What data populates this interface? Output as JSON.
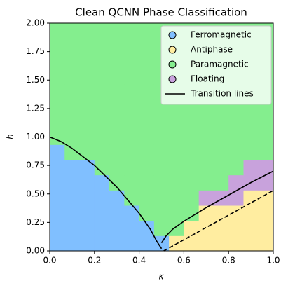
{
  "chart_data": {
    "type": "phase-map",
    "title": "Clean QCNN Phase Classification",
    "x_label": "κ",
    "y_label": "h",
    "xlim": [
      0,
      1
    ],
    "ylim": [
      0,
      2
    ],
    "xticks": [
      {
        "value": 0,
        "label": "0.0"
      },
      {
        "value": 0.2,
        "label": "0.2"
      },
      {
        "value": 0.4,
        "label": "0.4"
      },
      {
        "value": 0.6,
        "label": "0.6"
      },
      {
        "value": 0.8,
        "label": "0.8"
      },
      {
        "value": 1,
        "label": "1.0"
      }
    ],
    "yticks": [
      {
        "value": 0,
        "label": "0.00"
      },
      {
        "value": 0.25,
        "label": "0.25"
      },
      {
        "value": 0.5,
        "label": "0.50"
      },
      {
        "value": 0.75,
        "label": "0.75"
      },
      {
        "value": 1,
        "label": "1.00"
      },
      {
        "value": 1.25,
        "label": "1.25"
      },
      {
        "value": 1.5,
        "label": "1.50"
      },
      {
        "value": 1.75,
        "label": "1.75"
      },
      {
        "value": 2,
        "label": "2.00"
      }
    ],
    "phases": [
      {
        "name": "Ferromagnetic",
        "color": "#80bfff"
      },
      {
        "name": "Antiphase",
        "color": "#ffeda0"
      },
      {
        "name": "Paramagnetic",
        "color": "#84ee8e"
      },
      {
        "name": "Floating",
        "color": "#c8a2dc"
      }
    ],
    "z": [
      [
        0,
        0,
        0,
        0,
        0,
        0,
        0,
        0,
        1,
        1,
        1,
        1,
        1,
        1,
        1
      ],
      [
        0,
        0,
        0,
        0,
        0,
        0,
        0,
        2,
        2,
        1,
        1,
        1,
        1,
        1,
        1
      ],
      [
        0,
        0,
        0,
        0,
        0,
        0,
        2,
        2,
        2,
        2,
        1,
        1,
        1,
        1,
        1
      ],
      [
        0,
        0,
        0,
        0,
        0,
        2,
        2,
        2,
        2,
        2,
        3,
        3,
        3,
        1,
        1
      ],
      [
        0,
        0,
        0,
        0,
        2,
        2,
        2,
        2,
        2,
        2,
        2,
        2,
        3,
        3,
        3
      ],
      [
        0,
        0,
        0,
        2,
        2,
        2,
        2,
        2,
        2,
        2,
        2,
        2,
        2,
        3,
        3
      ],
      [
        0,
        2,
        2,
        2,
        2,
        2,
        2,
        2,
        2,
        2,
        2,
        2,
        2,
        2,
        2
      ],
      [
        2,
        2,
        2,
        2,
        2,
        2,
        2,
        2,
        2,
        2,
        2,
        2,
        2,
        2,
        2
      ],
      [
        2,
        2,
        2,
        2,
        2,
        2,
        2,
        2,
        2,
        2,
        2,
        2,
        2,
        2,
        2
      ],
      [
        2,
        2,
        2,
        2,
        2,
        2,
        2,
        2,
        2,
        2,
        2,
        2,
        2,
        2,
        2
      ],
      [
        2,
        2,
        2,
        2,
        2,
        2,
        2,
        2,
        2,
        2,
        2,
        2,
        2,
        2,
        2
      ],
      [
        2,
        2,
        2,
        2,
        2,
        2,
        2,
        2,
        2,
        2,
        2,
        2,
        2,
        2,
        2
      ],
      [
        2,
        2,
        2,
        2,
        2,
        2,
        2,
        2,
        2,
        2,
        2,
        2,
        2,
        2,
        2
      ],
      [
        2,
        2,
        2,
        2,
        2,
        2,
        2,
        2,
        2,
        2,
        2,
        2,
        2,
        2,
        2
      ],
      [
        2,
        2,
        2,
        2,
        2,
        2,
        2,
        2,
        2,
        2,
        2,
        2,
        2,
        2,
        2
      ]
    ],
    "transition": {
      "name": "Transition lines",
      "color": "#000000",
      "lines": [
        {
          "x": [
            0,
            0.05,
            0.1,
            0.2,
            0.3,
            0.4,
            0.45,
            0.48,
            0.5
          ],
          "values": [
            1,
            0.96,
            0.9,
            0.75,
            0.56,
            0.33,
            0.19,
            0.08,
            0.02
          ],
          "dashed": false
        },
        {
          "x": [
            0.5,
            0.52,
            0.55,
            0.6,
            0.7,
            0.8,
            0.9,
            1
          ],
          "values": [
            0.07,
            0.13,
            0.19,
            0.26,
            0.38,
            0.49,
            0.6,
            0.7
          ],
          "dashed": false
        },
        {
          "x": [
            0.51,
            1
          ],
          "values": [
            0,
            0.53
          ],
          "dashed": true
        }
      ]
    },
    "legend": "upper right"
  }
}
